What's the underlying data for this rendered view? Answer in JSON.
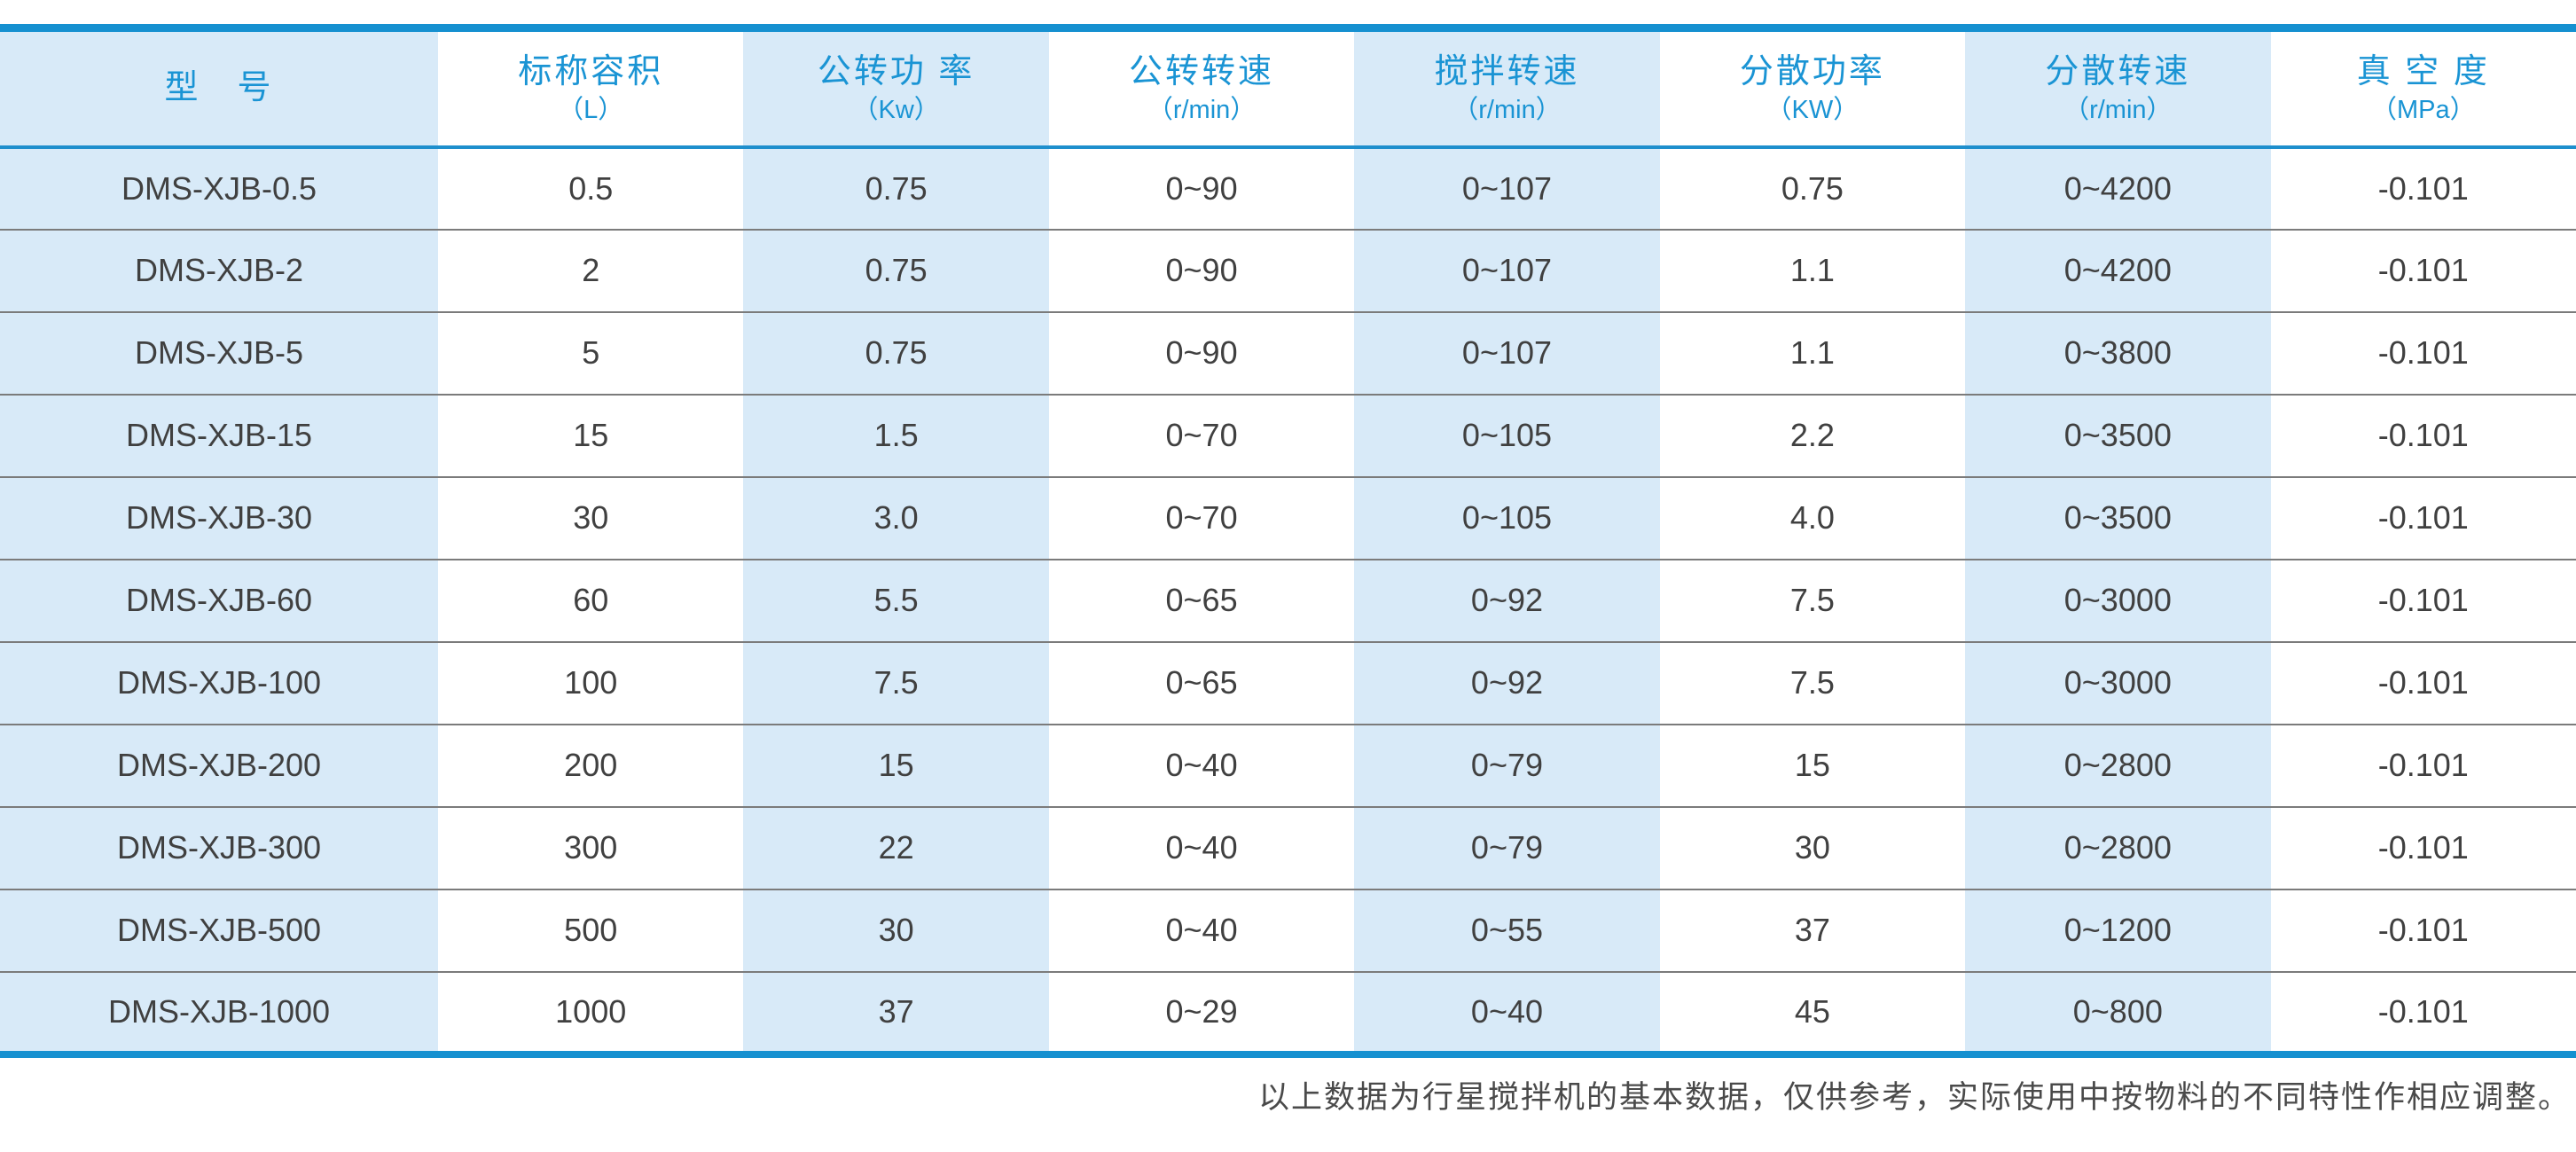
{
  "table": {
    "columns": [
      {
        "title": "型　号",
        "unit": ""
      },
      {
        "title": "标称容积",
        "unit": "（L）"
      },
      {
        "title": "公转功 率",
        "unit": "（Kw）"
      },
      {
        "title": "公转转速",
        "unit": "（r/min）"
      },
      {
        "title": "搅拌转速",
        "unit": "（r/min）"
      },
      {
        "title": "分散功率",
        "unit": "（KW）"
      },
      {
        "title": "分散转速",
        "unit": "（r/min）"
      },
      {
        "title": "真 空 度",
        "unit": "（MPa）"
      }
    ],
    "rows": [
      [
        "DMS-XJB-0.5",
        "0.5",
        "0.75",
        "0~90",
        "0~107",
        "0.75",
        "0~4200",
        "-0.101"
      ],
      [
        "DMS-XJB-2",
        "2",
        "0.75",
        "0~90",
        "0~107",
        "1.1",
        "0~4200",
        "-0.101"
      ],
      [
        "DMS-XJB-5",
        "5",
        "0.75",
        "0~90",
        "0~107",
        "1.1",
        "0~3800",
        "-0.101"
      ],
      [
        "DMS-XJB-15",
        "15",
        "1.5",
        "0~70",
        "0~105",
        "2.2",
        "0~3500",
        "-0.101"
      ],
      [
        "DMS-XJB-30",
        "30",
        "3.0",
        "0~70",
        "0~105",
        "4.0",
        "0~3500",
        "-0.101"
      ],
      [
        "DMS-XJB-60",
        "60",
        "5.5",
        "0~65",
        "0~92",
        "7.5",
        "0~3000",
        "-0.101"
      ],
      [
        "DMS-XJB-100",
        "100",
        "7.5",
        "0~65",
        "0~92",
        "7.5",
        "0~3000",
        "-0.101"
      ],
      [
        "DMS-XJB-200",
        "200",
        "15",
        "0~40",
        "0~79",
        "15",
        "0~2800",
        "-0.101"
      ],
      [
        "DMS-XJB-300",
        "300",
        "22",
        "0~40",
        "0~79",
        "30",
        "0~2800",
        "-0.101"
      ],
      [
        "DMS-XJB-500",
        "500",
        "30",
        "0~40",
        "0~55",
        "37",
        "0~1200",
        "-0.101"
      ],
      [
        "DMS-XJB-1000",
        "1000",
        "37",
        "0~29",
        "0~40",
        "45",
        "0~800",
        "-0.101"
      ]
    ]
  },
  "footer": {
    "note": "以上数据为行星搅拌机的基本数据，仅供参考，实际使用中按物料的不同特性作相应调整。"
  },
  "colors": {
    "accent_blue": "#1590d0",
    "header_text_blue": "#1a94d4",
    "cell_light_blue": "#d8eaf8",
    "body_text": "#404040",
    "row_divider_gray": "#7b7b7b"
  }
}
